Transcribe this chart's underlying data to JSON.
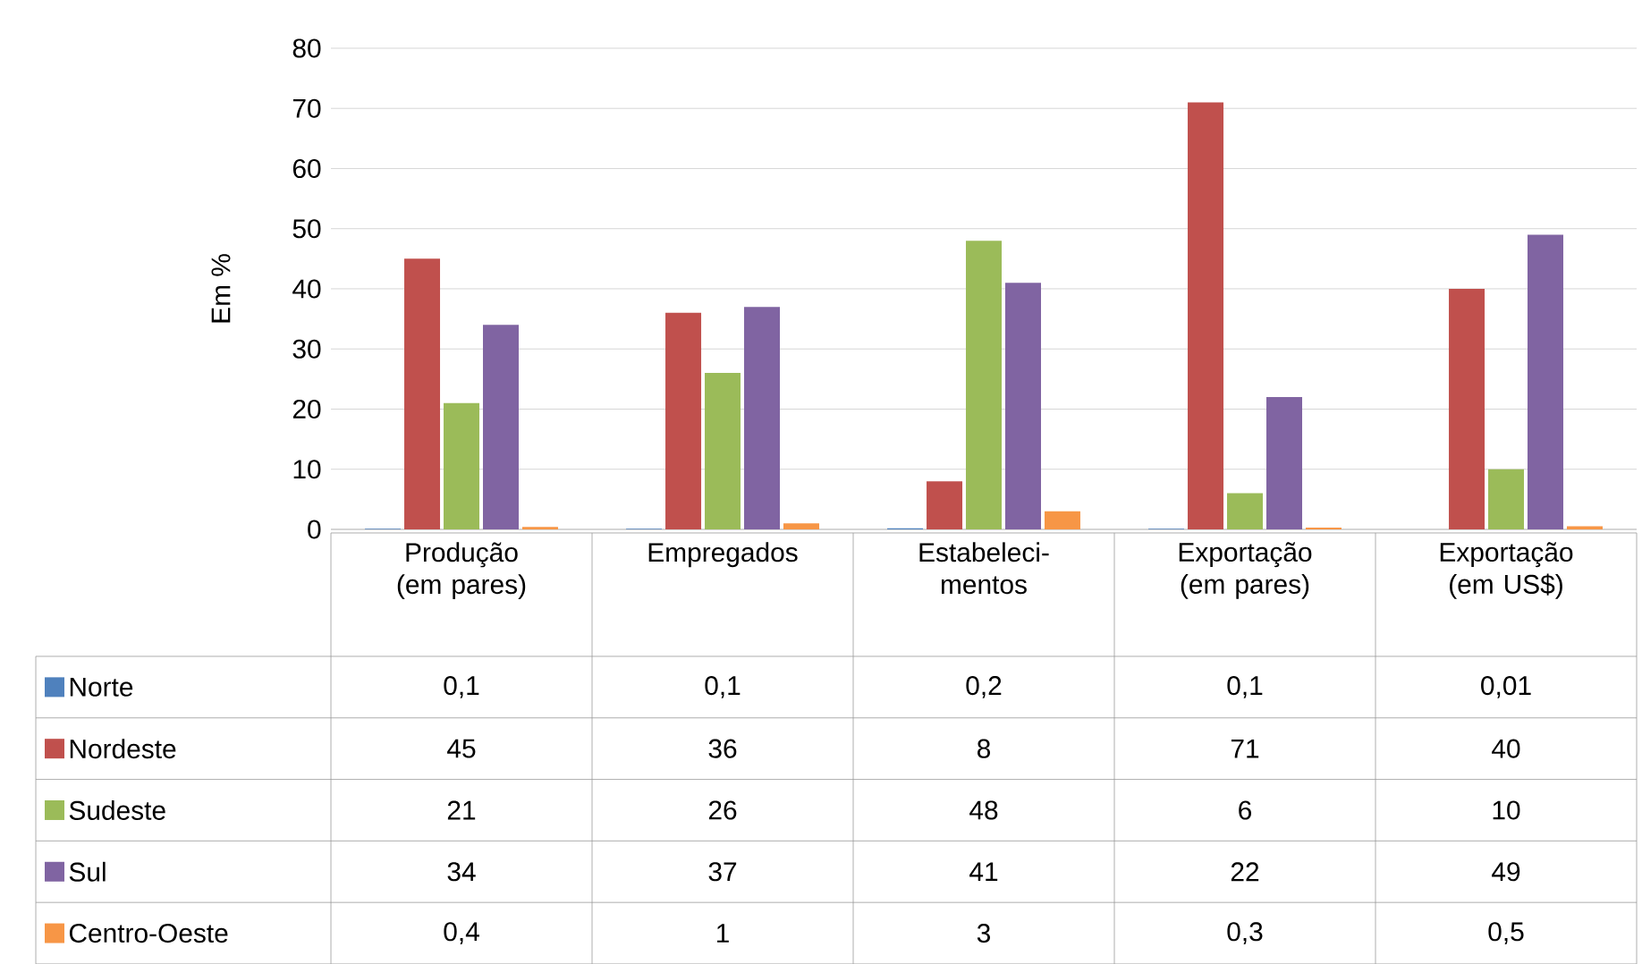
{
  "chart_data": {
    "type": "bar",
    "ylabel": "Em %",
    "categories": [
      "Produção (em pares)",
      "Empregados",
      "Estabeleci- mentos",
      "Exportação (em pares)",
      "Exportação (em US$)"
    ],
    "ylim": [
      0,
      80
    ],
    "yticks": [
      0,
      10,
      20,
      30,
      40,
      50,
      60,
      70,
      80
    ],
    "grid": "y",
    "legend": "bottom",
    "series": [
      {
        "name": "Norte",
        "color": "#4f81bd",
        "values": [
          0.1,
          0.1,
          0.2,
          0.1,
          0.01
        ],
        "value_labels": [
          "0,1",
          "0,1",
          "0,2",
          "0,1",
          "0,01"
        ]
      },
      {
        "name": "Nordeste",
        "color": "#c0504d",
        "values": [
          45,
          36,
          8,
          71,
          40
        ],
        "value_labels": [
          "45",
          "36",
          "8",
          "71",
          "40"
        ]
      },
      {
        "name": "Sudeste",
        "color": "#9bbb59",
        "values": [
          21,
          26,
          48,
          6,
          10
        ],
        "value_labels": [
          "21",
          "26",
          "48",
          "6",
          "10"
        ]
      },
      {
        "name": "Sul",
        "color": "#8064a2",
        "values": [
          34,
          37,
          41,
          22,
          49
        ],
        "value_labels": [
          "34",
          "37",
          "41",
          "22",
          "49"
        ]
      },
      {
        "name": "Centro-Oeste",
        "color": "#f79646",
        "values": [
          0.4,
          1,
          3,
          0.3,
          0.5
        ],
        "value_labels": [
          "0,4",
          "1",
          "3",
          "0,3",
          "0,5"
        ]
      }
    ]
  }
}
